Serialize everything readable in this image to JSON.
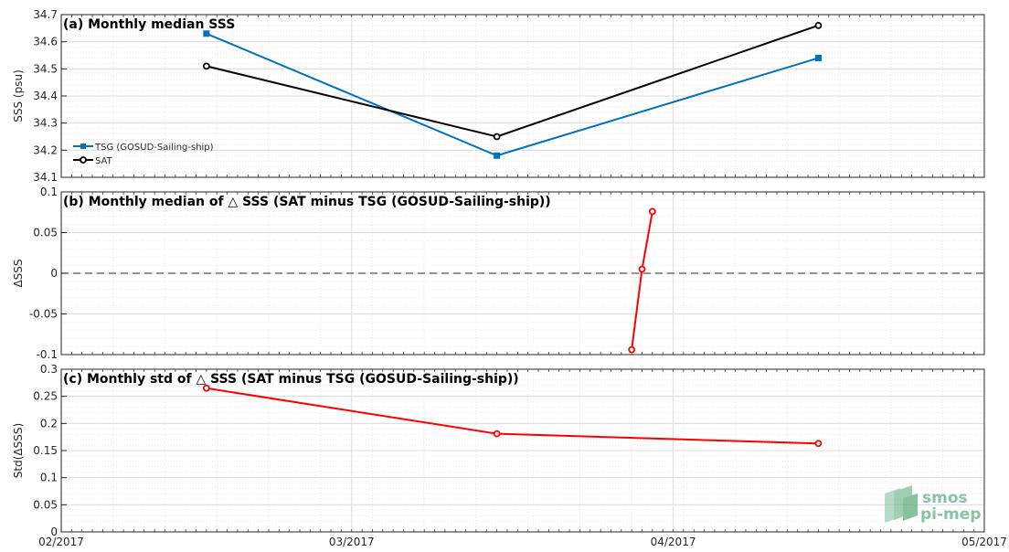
{
  "colors": {
    "tsg": "#0072bd",
    "sat": "#000000",
    "delta": "#ff0000",
    "grid": "#dcdcdc",
    "axis": "#262626",
    "zero_line": "#555555",
    "logo": "#72b894"
  },
  "logo": {
    "line1": "smos",
    "line2": "pi-mep",
    "icon": "smos-pi-mep-logo-icon"
  },
  "chart_data": [
    {
      "type": "line",
      "title": "(a) Monthly median SSS",
      "ylabel": "SSS (psu)",
      "ylim": [
        34.1,
        34.7
      ],
      "yticks": [
        34.1,
        34.2,
        34.3,
        34.4,
        34.5,
        34.6,
        34.7
      ],
      "ytick_labels": [
        "34.1",
        "34.2",
        "34.3",
        "34.4",
        "34.5",
        "34.6",
        "34.7"
      ],
      "xlim": [
        "2017-02-01",
        "2017-05-01"
      ],
      "grid": true,
      "legend_position": "left",
      "series": [
        {
          "name": "TSG (GOSUD-Sailing-ship)",
          "color": "#0072bd",
          "marker": "filled-square",
          "x": [
            "2017-02-15",
            "2017-03-15",
            "2017-04-15"
          ],
          "values": [
            34.63,
            34.18,
            34.54
          ]
        },
        {
          "name": "SAT",
          "color": "#000000",
          "marker": "open-circle",
          "x": [
            "2017-02-15",
            "2017-03-15",
            "2017-04-15"
          ],
          "values": [
            34.51,
            34.25,
            34.66
          ]
        }
      ]
    },
    {
      "type": "line",
      "title": "(b) Monthly median of △ SSS (SAT minus TSG (GOSUD-Sailing-ship))",
      "ylabel": "ΔSSS",
      "ylim": [
        -0.1,
        0.1
      ],
      "yticks": [
        -0.1,
        -0.05,
        0,
        0.05,
        0.1
      ],
      "ytick_labels": [
        "-0.1",
        "-0.05",
        "0",
        "0.05",
        "0.1"
      ],
      "xlim": [
        "2017-02-01",
        "2017-05-01"
      ],
      "grid": true,
      "zero_line": true,
      "series": [
        {
          "color": "#ff0000",
          "marker": "open-circle",
          "x": [
            "2017-03-28",
            "2017-03-29",
            "2017-03-30"
          ],
          "values": [
            -0.094,
            0.005,
            0.076
          ]
        }
      ]
    },
    {
      "type": "line",
      "title": "(c) Monthly std of △ SSS (SAT minus TSG (GOSUD-Sailing-ship))",
      "ylabel": "Std(ΔSSS)",
      "ylim": [
        0,
        0.3
      ],
      "yticks": [
        0,
        0.05,
        0.1,
        0.15,
        0.2,
        0.25,
        0.3
      ],
      "ytick_labels": [
        "0",
        "0.05",
        "0.1",
        "0.15",
        "0.2",
        "0.25",
        "0.3"
      ],
      "xlim": [
        "2017-02-01",
        "2017-05-01"
      ],
      "xticks": [
        "2017-02-01",
        "2017-03-01",
        "2017-04-01",
        "2017-05-01"
      ],
      "xtick_labels": [
        "02/2017",
        "03/2017",
        "04/2017",
        "05/2017"
      ],
      "grid": true,
      "series": [
        {
          "color": "#ff0000",
          "marker": "open-circle",
          "x": [
            "2017-02-15",
            "2017-03-15",
            "2017-04-15"
          ],
          "values": [
            0.265,
            0.181,
            0.163
          ]
        }
      ]
    }
  ]
}
